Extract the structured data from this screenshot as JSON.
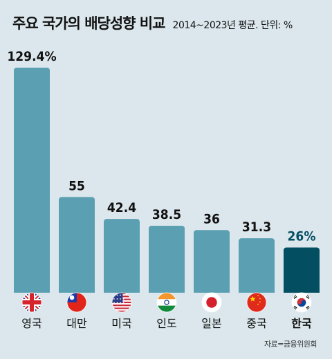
{
  "title": "주요 국가의 배당성향 비교",
  "subtitle": "2014~2023년 평균. 단위: %",
  "source": "자료=금융위원회",
  "colors": {
    "bar": "#5aa0b2",
    "bar_highlight": "#044e62",
    "label": "#111111",
    "label_highlight": "#044e62"
  },
  "chart_data": {
    "type": "bar",
    "title": "주요 국가의 배당성향 비교",
    "subtitle": "2014~2023년 평균. 단위: %",
    "categories": [
      "영국",
      "대만",
      "미국",
      "인도",
      "일본",
      "중국",
      "한국"
    ],
    "value_labels": [
      "129.4%",
      "55",
      "42.4",
      "38.5",
      "36",
      "31.3",
      "26%"
    ],
    "values": [
      129.4,
      55,
      42.4,
      38.5,
      36,
      31.3,
      26
    ],
    "highlight": "한국",
    "flags": [
      "uk-flag-icon",
      "taiwan-flag-icon",
      "us-flag-icon",
      "india-flag-icon",
      "japan-flag-icon",
      "china-flag-icon",
      "korea-flag-icon"
    ],
    "ylim": [
      0,
      129.4
    ],
    "grid": false
  }
}
